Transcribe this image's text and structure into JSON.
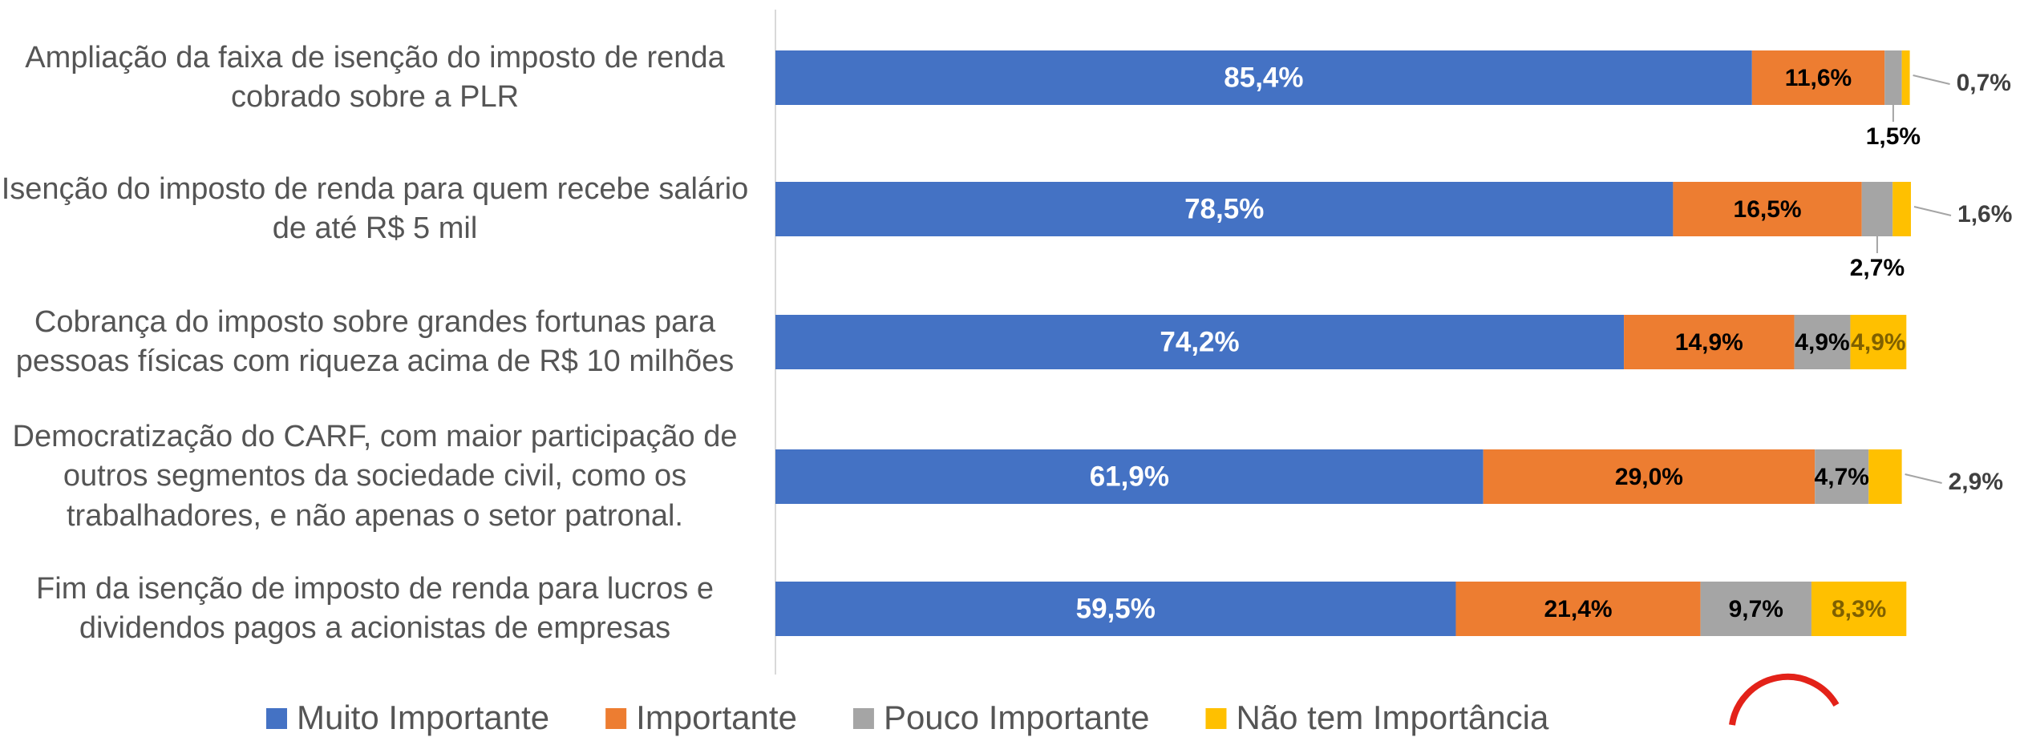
{
  "chart_data": {
    "type": "stacked_barh",
    "categories": [
      "Ampliação da faixa de isenção do imposto de renda cobrado sobre a PLR",
      "Isenção do imposto de renda para quem recebe salário de até R$ 5 mil",
      "Cobrança do imposto sobre grandes fortunas para pessoas físicas com riqueza acima de R$ 10 milhões",
      "Democratização do CARF, com maior participação de outros segmentos da sociedade civil, como os trabalhadores, e não apenas o setor patronal.",
      "Fim da isenção de imposto de renda para lucros e dividendos pagos a acionistas de empresas"
    ],
    "series": [
      {
        "name": "Muito Importante",
        "color": "#4472c4",
        "values": [
          85.4,
          78.5,
          74.2,
          61.9,
          59.5
        ],
        "value_labels": [
          "85,4%",
          "78,5%",
          "74,2%",
          "61,9%",
          "59,5%"
        ]
      },
      {
        "name": "Importante",
        "color": "#ed7d31",
        "values": [
          11.6,
          16.5,
          14.9,
          29.0,
          21.4
        ],
        "value_labels": [
          "11,6%",
          "16,5%",
          "14,9%",
          "29,0%",
          "21,4%"
        ]
      },
      {
        "name": "Pouco Importante",
        "color": "#a5a5a5",
        "values": [
          1.5,
          2.7,
          4.9,
          4.7,
          9.7
        ],
        "value_labels": [
          "1,5%",
          "2,7%",
          "4,9%",
          "4,7%",
          "9,7%"
        ]
      },
      {
        "name": "Não tem Importância",
        "color": "#ffc000",
        "values": [
          0.7,
          1.6,
          4.9,
          2.9,
          8.3
        ],
        "value_labels": [
          "0,7%",
          "1,6%",
          "4,9%",
          "2,9%",
          "8,3%"
        ]
      }
    ],
    "xlim": [
      0,
      100
    ],
    "legend": "bottom"
  }
}
